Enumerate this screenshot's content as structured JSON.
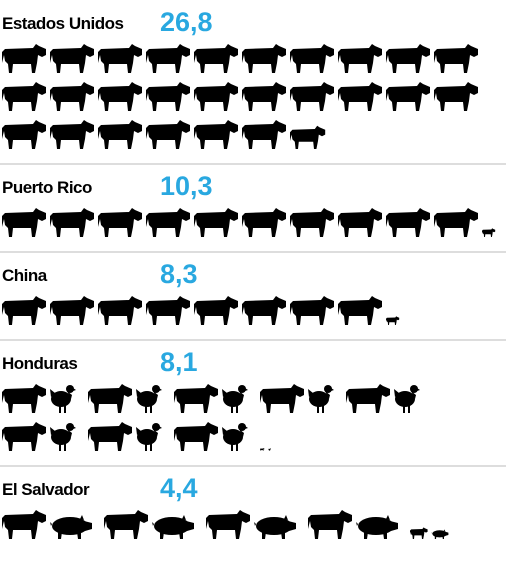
{
  "chart_data": {
    "type": "pictogram",
    "categories": [
      "Estados Unidos",
      "Puerto Rico",
      "China",
      "Honduras",
      "El Salvador"
    ],
    "values": [
      26.8,
      10.3,
      8.3,
      8.1,
      4.4
    ],
    "value_labels": [
      "26,8",
      "10,3",
      "8,3",
      "8,1",
      "4,4"
    ],
    "icons": [
      [
        "cow"
      ],
      [
        "cow"
      ],
      [
        "cow"
      ],
      [
        "cow",
        "chicken"
      ],
      [
        "cow",
        "pig"
      ]
    ],
    "color": "#000000",
    "label_color": "#29a8e0",
    "separator_color": "#bbbbbb"
  }
}
